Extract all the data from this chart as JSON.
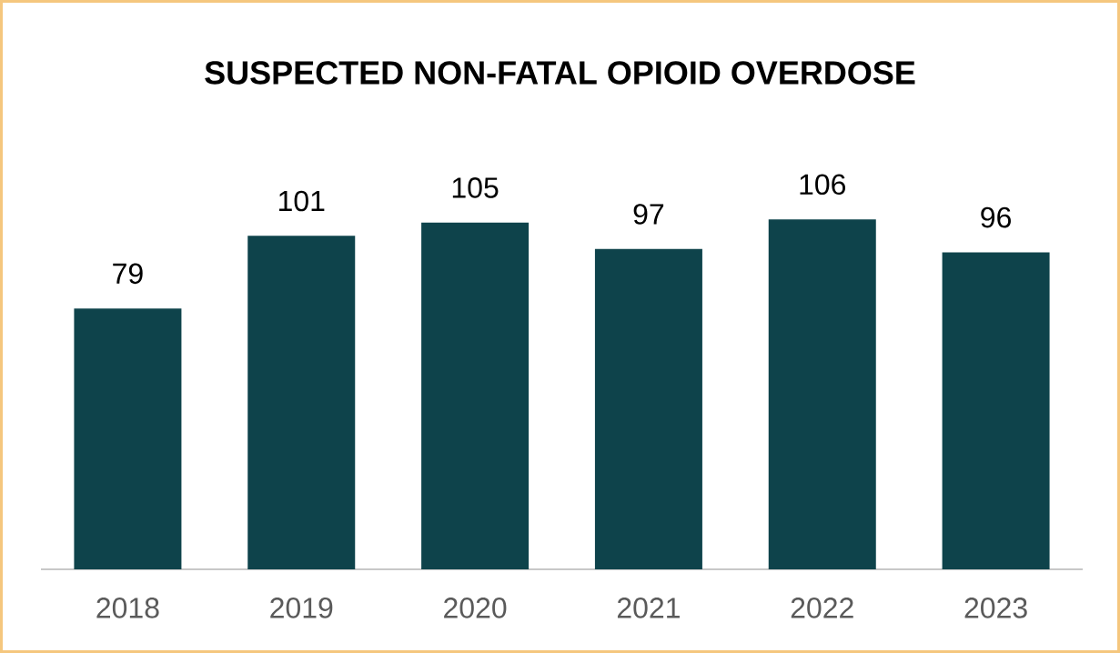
{
  "chart_data": {
    "type": "bar",
    "title": "SUSPECTED NON-FATAL OPIOID OVERDOSE",
    "categories": [
      "2018",
      "2019",
      "2020",
      "2021",
      "2022",
      "2023"
    ],
    "values": [
      79,
      101,
      105,
      97,
      106,
      96
    ],
    "color": "#0e434b",
    "data_labels": true
  }
}
